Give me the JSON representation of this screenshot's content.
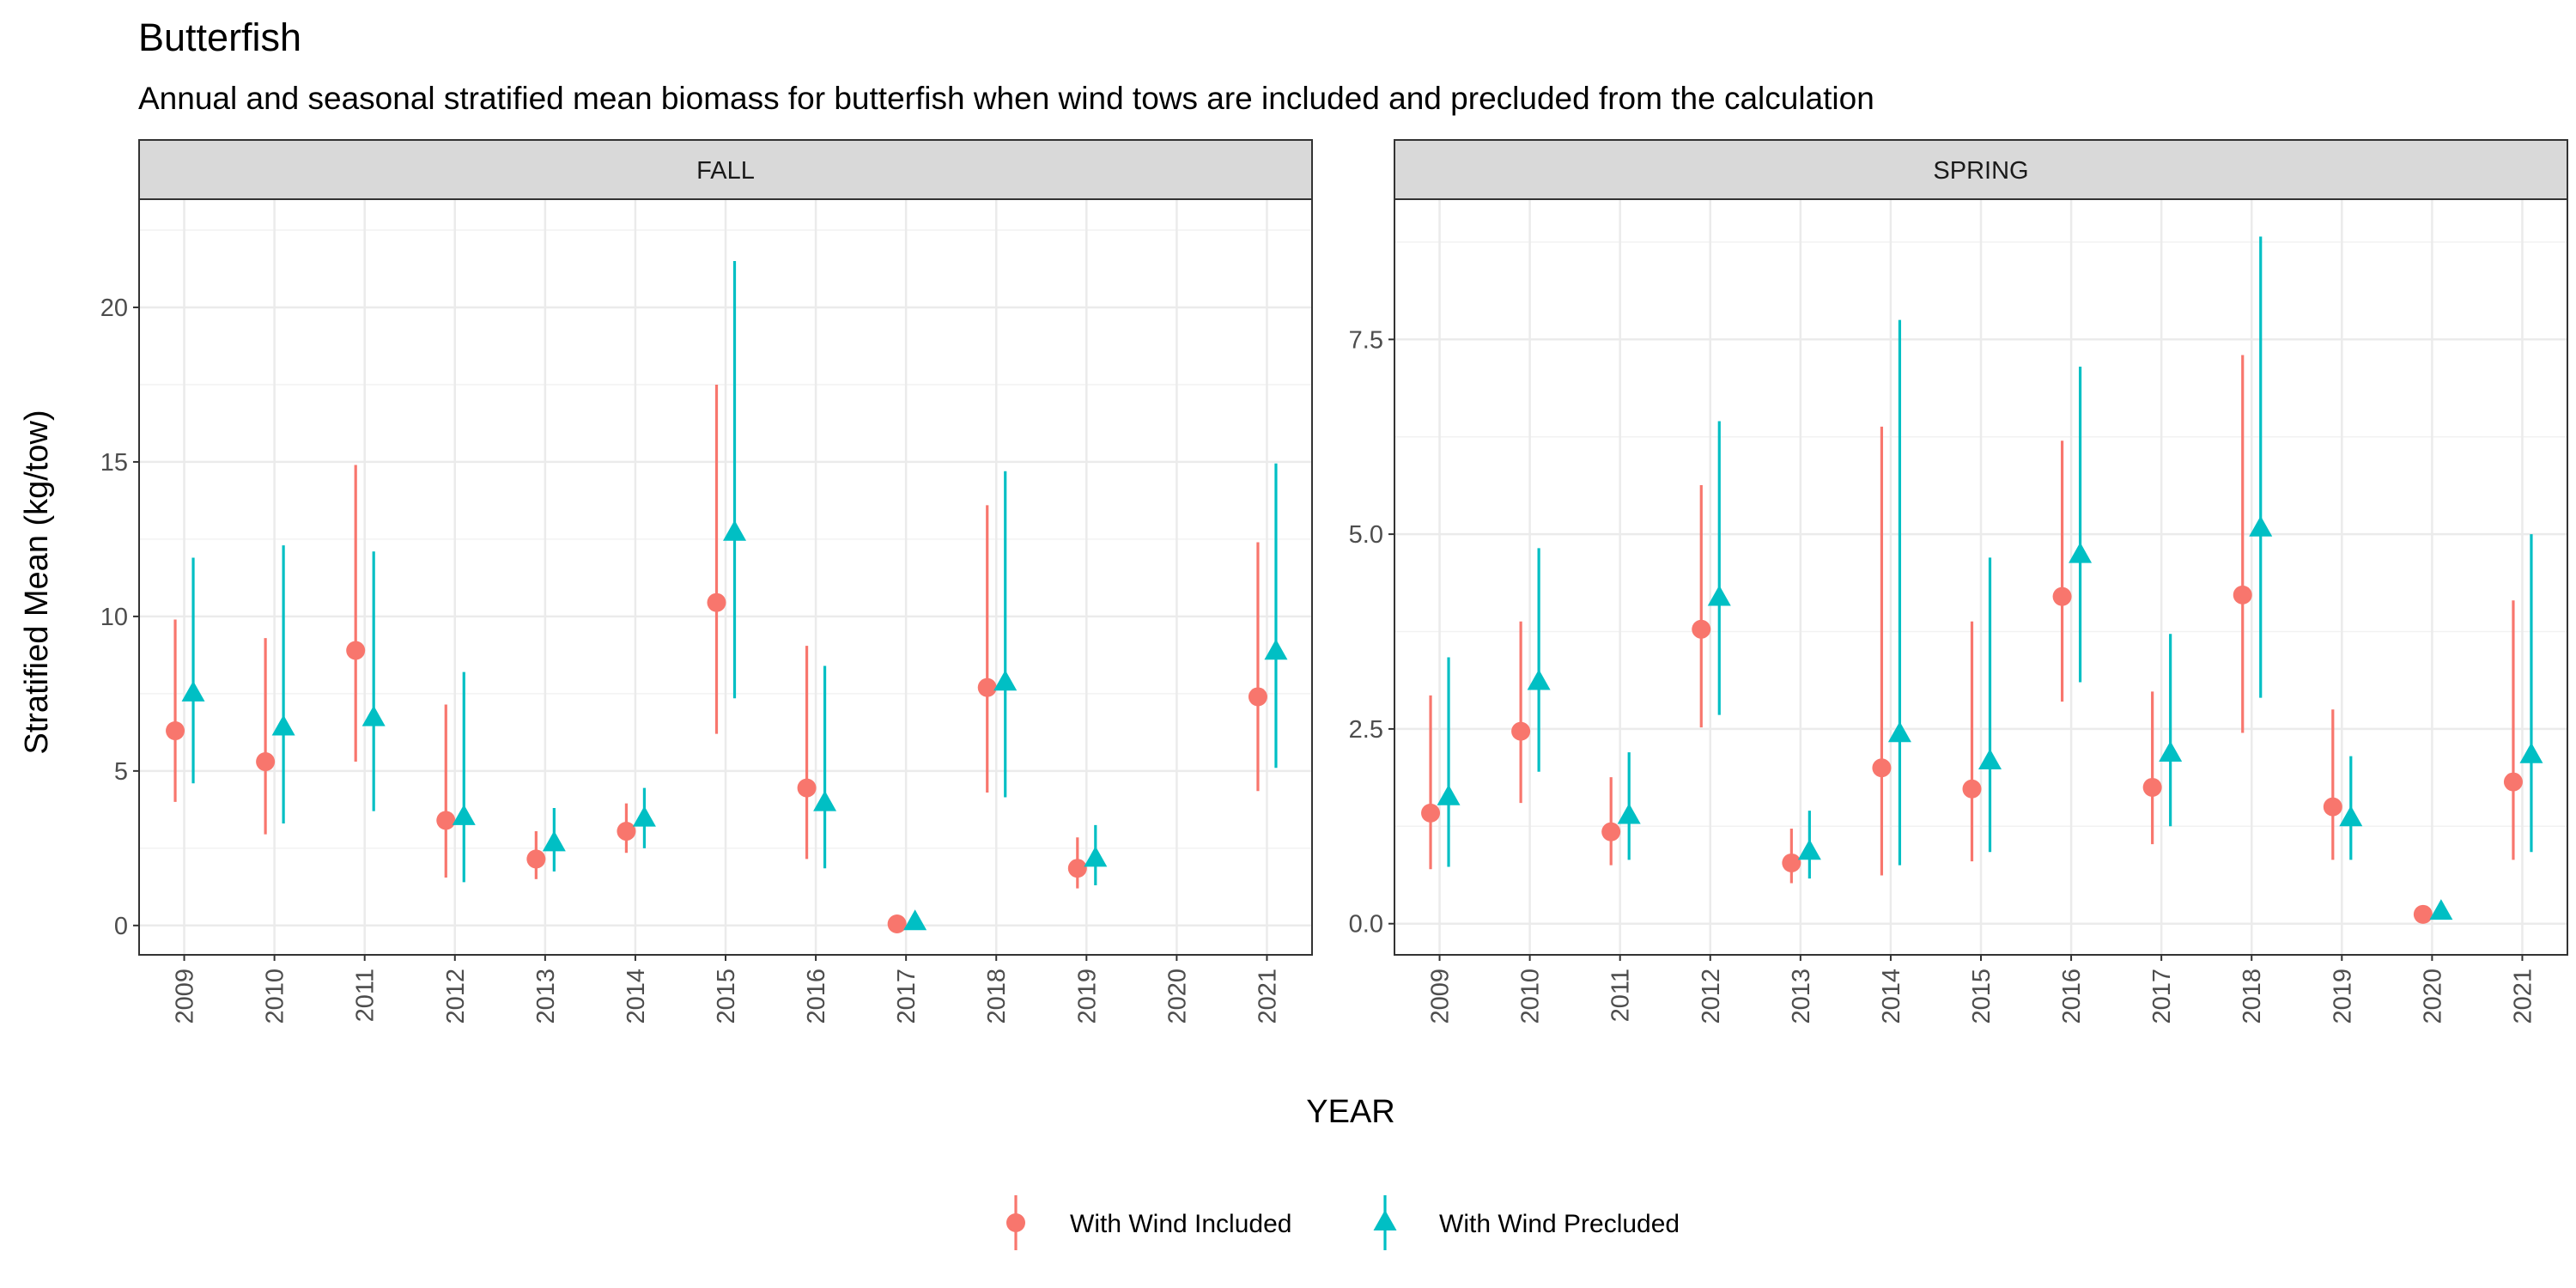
{
  "chart_data": {
    "type": "scatter",
    "title": "Butterfish",
    "subtitle": "Annual and seasonal stratified mean biomass for butterfish when wind tows are included and precluded from the calculation",
    "xlabel": "YEAR",
    "ylabel": "Stratified Mean (kg/tow)",
    "categories": [
      "2009",
      "2010",
      "2011",
      "2012",
      "2013",
      "2014",
      "2015",
      "2016",
      "2017",
      "2018",
      "2019",
      "2020",
      "2021"
    ],
    "legend_position": "bottom",
    "grid": true,
    "series_styles": [
      {
        "name": "With Wind Included",
        "color": "#F8766D",
        "shape": "circle"
      },
      {
        "name": "With Wind Precluded",
        "color": "#00BFC4",
        "shape": "triangle"
      }
    ],
    "panels": [
      {
        "name": "FALL",
        "ylim": [
          -0.95,
          23.5
        ],
        "yticks": [
          0,
          5,
          10,
          15,
          20
        ],
        "ytick_labels": [
          "0",
          "5",
          "10",
          "15",
          "20"
        ],
        "series": [
          {
            "name": "With Wind Included",
            "values": [
              6.3,
              5.3,
              8.9,
              3.4,
              2.15,
              3.05,
              10.45,
              4.45,
              0.05,
              7.7,
              1.85,
              null,
              7.4
            ],
            "lower": [
              4.0,
              2.95,
              5.3,
              1.55,
              1.5,
              2.35,
              6.2,
              2.15,
              0.0,
              4.3,
              1.2,
              null,
              4.35
            ],
            "upper": [
              9.9,
              9.3,
              14.9,
              7.15,
              3.05,
              3.95,
              17.5,
              9.05,
              0.15,
              13.6,
              2.85,
              null,
              12.4
            ]
          },
          {
            "name": "With Wind Precluded",
            "values": [
              7.5,
              6.4,
              6.7,
              3.5,
              2.65,
              3.45,
              12.7,
              3.95,
              0.1,
              7.85,
              2.15,
              null,
              8.85
            ],
            "lower": [
              4.6,
              3.3,
              3.7,
              1.4,
              1.75,
              2.5,
              7.35,
              1.85,
              0.0,
              4.15,
              1.3,
              null,
              5.1
            ],
            "upper": [
              11.9,
              12.3,
              12.1,
              8.2,
              3.8,
              4.45,
              21.5,
              8.4,
              0.2,
              14.7,
              3.25,
              null,
              14.95
            ]
          }
        ]
      },
      {
        "name": "SPRING",
        "ylim": [
          -0.4,
          9.3
        ],
        "yticks": [
          0,
          2.5,
          5,
          7.5
        ],
        "ytick_labels": [
          "0.0",
          "2.5",
          "5.0",
          "7.5"
        ],
        "series": [
          {
            "name": "With Wind Included",
            "values": [
              1.42,
              2.47,
              1.18,
              3.78,
              0.78,
              2.0,
              1.73,
              4.2,
              1.75,
              4.22,
              1.5,
              0.12,
              1.82
            ],
            "lower": [
              0.7,
              1.55,
              0.75,
              2.52,
              0.52,
              0.62,
              0.8,
              2.85,
              1.02,
              2.45,
              0.82,
              0.08,
              0.82
            ],
            "upper": [
              2.93,
              3.88,
              1.88,
              5.63,
              1.22,
              6.38,
              3.88,
              6.2,
              2.98,
              7.3,
              2.75,
              0.18,
              4.15
            ]
          },
          {
            "name": "With Wind Precluded",
            "values": [
              1.62,
              3.1,
              1.38,
              4.18,
              0.92,
              2.43,
              2.08,
              4.73,
              2.18,
              5.07,
              1.35,
              0.15,
              2.16
            ],
            "lower": [
              0.73,
              1.95,
              0.82,
              2.68,
              0.58,
              0.75,
              0.92,
              3.1,
              1.25,
              2.9,
              0.82,
              0.1,
              0.92
            ],
            "upper": [
              3.42,
              4.82,
              2.2,
              6.45,
              1.45,
              7.75,
              4.7,
              7.15,
              3.72,
              8.82,
              2.15,
              0.2,
              5.0
            ]
          }
        ]
      }
    ]
  }
}
